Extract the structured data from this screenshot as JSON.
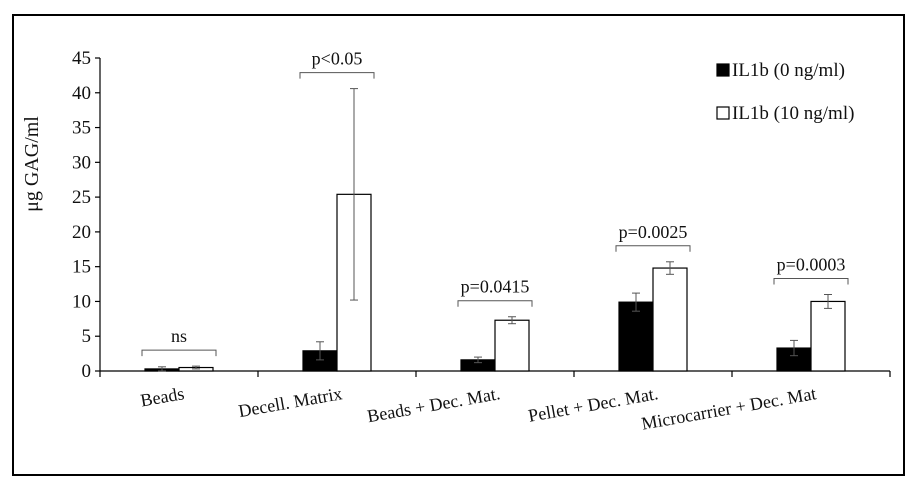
{
  "chart_data": {
    "type": "bar",
    "title": "",
    "xlabel": "",
    "ylabel": "μg GAG/ml",
    "ylim": [
      0,
      45
    ],
    "yticks": [
      0,
      5,
      10,
      15,
      20,
      25,
      30,
      35,
      40,
      45
    ],
    "categories": [
      "Beads",
      "Decell. Matrix",
      "Beads + Dec. Mat.",
      "Pellet + Dec. Mat.",
      "Microcarrier + Dec. Mat"
    ],
    "series": [
      {
        "name": "IL1b (0 ng/ml)",
        "fill": "#000000",
        "values": [
          0.3,
          2.9,
          1.6,
          9.9,
          3.3
        ],
        "errors": [
          0.3,
          1.3,
          0.4,
          1.3,
          1.1
        ]
      },
      {
        "name": "IL1b (10 ng/ml)",
        "fill": "#ffffff",
        "values": [
          0.5,
          25.4,
          7.3,
          14.8,
          10.0
        ],
        "errors": [
          0.2,
          15.2,
          0.5,
          0.9,
          1.0
        ]
      }
    ],
    "annotations": [
      {
        "label": "ns",
        "category": 0
      },
      {
        "label": "p<0.05",
        "category": 1
      },
      {
        "label": "p=0.0415",
        "category": 2
      },
      {
        "label": "p=0.0025",
        "category": 3
      },
      {
        "label": "p=0.0003",
        "category": 4
      }
    ],
    "grid": false,
    "legend_position": "top-right"
  }
}
